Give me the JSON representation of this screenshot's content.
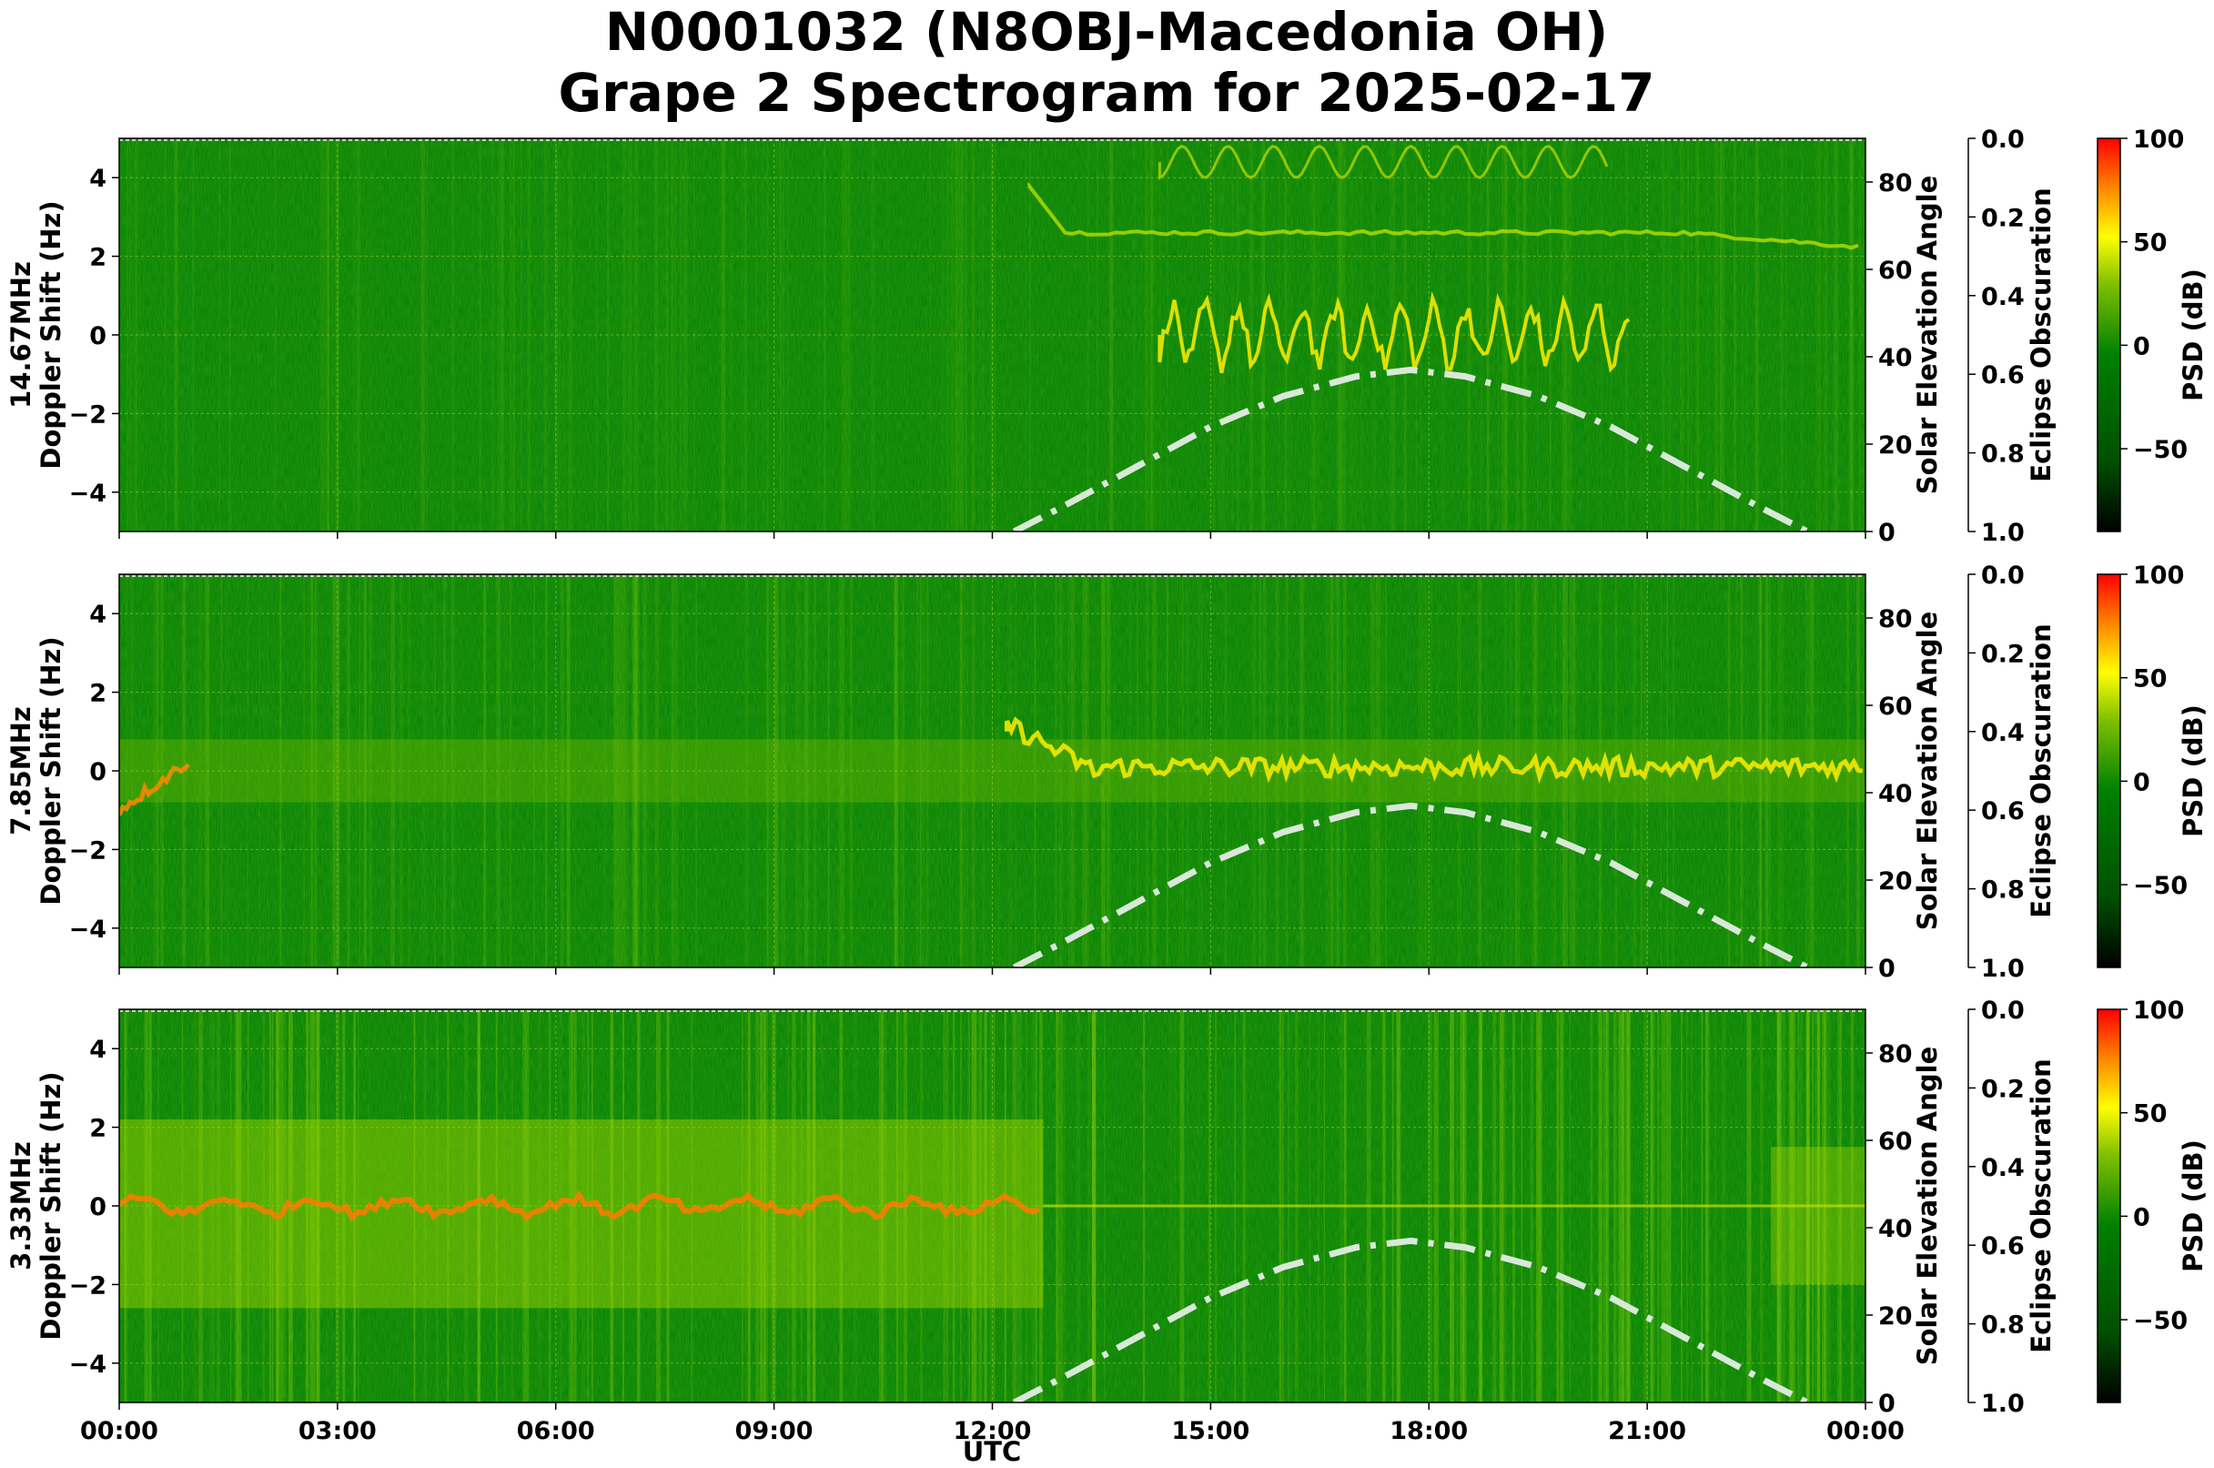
{
  "title_line1": "N0001032 (N8OBJ-Macedonia OH)",
  "title_line2": "Grape 2 Spectrogram for 2025-02-17",
  "xlabel": "UTC",
  "colors": {
    "background": "#008000",
    "cmap": [
      "#000000",
      "#006400",
      "#008000",
      "#7fc000",
      "#ffff00",
      "#ff7f00",
      "#ff0000"
    ],
    "solar_curve": "#d9e8d9",
    "grid": "#9acd32"
  },
  "chart_data": [
    {
      "type": "heatmap",
      "band": "14.67MHz",
      "ylabel_line1": "14.67MHz",
      "ylabel_line2": "Doppler Shift (Hz)",
      "y2label": "Solar Elevation Angle",
      "y3label": "Eclipse Obscuration",
      "cbar_label": "PSD (dB)",
      "xlim_hours": [
        0,
        24
      ],
      "ylim": [
        -5,
        5
      ],
      "y2lim": [
        0,
        90
      ],
      "y3lim": [
        1.0,
        0.0
      ],
      "cbar_lim": [
        -90,
        100
      ]
    },
    {
      "type": "heatmap",
      "band": "7.85MHz",
      "ylabel_line1": "7.85MHz",
      "ylabel_line2": "Doppler Shift (Hz)",
      "y2label": "Solar Elevation Angle",
      "y3label": "Eclipse Obscuration",
      "cbar_label": "PSD (dB)",
      "xlim_hours": [
        0,
        24
      ],
      "ylim": [
        -5,
        5
      ],
      "y2lim": [
        0,
        90
      ],
      "y3lim": [
        1.0,
        0.0
      ],
      "cbar_lim": [
        -90,
        100
      ]
    },
    {
      "type": "heatmap",
      "band": "3.33MHz",
      "ylabel_line1": "3.33MHz",
      "ylabel_line2": "Doppler Shift (Hz)",
      "y2label": "Solar Elevation Angle",
      "y3label": "Eclipse Obscuration",
      "cbar_label": "PSD (dB)",
      "xlim_hours": [
        0,
        24
      ],
      "ylim": [
        -5,
        5
      ],
      "y2lim": [
        0,
        90
      ],
      "y3lim": [
        1.0,
        0.0
      ],
      "cbar_lim": [
        -90,
        100
      ]
    }
  ],
  "axes": {
    "x_ticks": [
      "00:00",
      "03:00",
      "06:00",
      "09:00",
      "12:00",
      "15:00",
      "18:00",
      "21:00",
      "00:00"
    ],
    "x_tick_hours": [
      0,
      3,
      6,
      9,
      12,
      15,
      18,
      21,
      24
    ],
    "y_ticks": [
      "4",
      "2",
      "0",
      "−2",
      "−4"
    ],
    "y_tick_values": [
      4,
      2,
      0,
      -2,
      -4
    ],
    "y2_ticks": [
      "80",
      "60",
      "40",
      "20",
      "0"
    ],
    "y2_tick_values": [
      80,
      60,
      40,
      20,
      0
    ],
    "y3_ticks": [
      "0.0",
      "0.2",
      "0.4",
      "0.6",
      "0.8",
      "1.0"
    ],
    "y3_tick_values": [
      0.0,
      0.2,
      0.4,
      0.6,
      0.8,
      1.0
    ],
    "cbar_ticks": [
      "100",
      "50",
      "0",
      "−50"
    ],
    "cbar_tick_values": [
      100,
      50,
      0,
      -50
    ]
  },
  "solar_elevation": {
    "hours": [
      12.3,
      13.0,
      14.0,
      15.0,
      16.0,
      17.0,
      17.75,
      18.5,
      19.5,
      20.5,
      21.5,
      22.5,
      23.2
    ],
    "degrees": [
      0,
      6,
      15,
      24,
      31,
      35.5,
      37,
      35.5,
      31,
      24,
      15,
      6,
      0
    ]
  }
}
